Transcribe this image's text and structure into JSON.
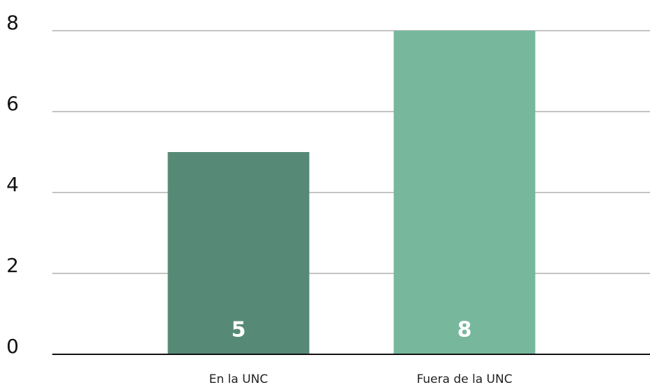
{
  "chart_data": {
    "type": "bar",
    "categories": [
      "En la UNC",
      "Fuera de la UNC"
    ],
    "values": [
      5,
      8
    ],
    "colors": [
      "#578a76",
      "#77b79c"
    ],
    "ylim": [
      0,
      8
    ],
    "yticks": [
      0,
      2,
      4,
      6,
      8
    ],
    "grid": true
  }
}
